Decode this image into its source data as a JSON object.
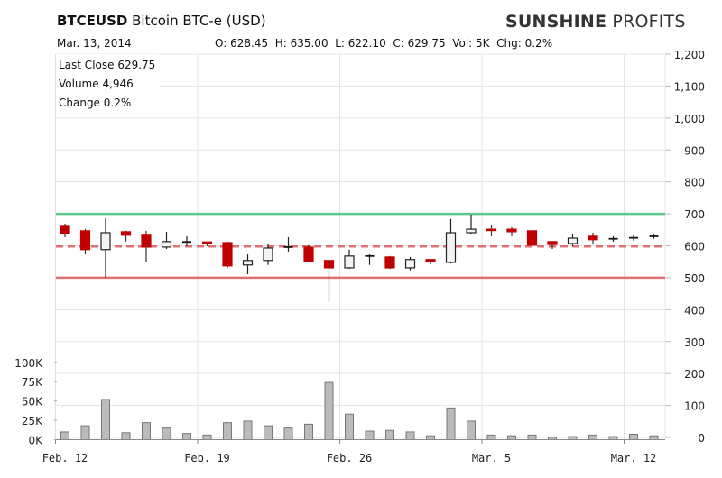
{
  "header": {
    "symbol": "BTCEUSD",
    "name": "Bitcoin BTC-e (USD)",
    "logo_bold": "SUNSHINE",
    "logo_light": "PROFITS",
    "date": "Mar. 13, 2014",
    "ohlc_text": "O: 628.45  H: 635.00  L: 622.10  C: 629.75  Vol: 5K  Chg: 0.2%"
  },
  "info": {
    "last_close": "Last Close 629.75",
    "volume": "Volume 4,946",
    "change": "Change 0.2%"
  },
  "colors": {
    "up": "#f4f4f4",
    "down": "#c00000",
    "resistance": "#5cc98a",
    "support": "#e07070",
    "volume": "#bbbbbb"
  },
  "chart_data": {
    "type": "candlestick",
    "title": "BTCEUSD Bitcoin BTC-e (USD)",
    "x_tick_labels": [
      "Feb. 12",
      "Feb. 19",
      "Feb. 26",
      "Mar. 5",
      "Mar. 12"
    ],
    "x_tick_day_index": [
      0,
      7,
      14,
      21,
      28
    ],
    "price_axis": {
      "ylim": [
        0,
        1200
      ],
      "ticks": [
        0,
        100,
        200,
        300,
        400,
        500,
        600,
        700,
        800,
        900,
        1000,
        1100,
        1200
      ],
      "tick_labels": [
        "0",
        "100",
        "200",
        "300",
        "400",
        "500",
        "600",
        "700",
        "800",
        "900",
        "1,000",
        "1,100",
        "1,200"
      ]
    },
    "volume_axis": {
      "ylim": [
        0,
        100
      ],
      "unit": "K",
      "ticks": [
        0,
        25,
        50,
        75,
        100
      ],
      "tick_labels": [
        "0K",
        "25K",
        "50K",
        "75K",
        "100K"
      ]
    },
    "horizontal_lines": [
      {
        "name": "resistance",
        "value": 700,
        "style": "solid",
        "color": "#5cc98a"
      },
      {
        "name": "mid",
        "value": 598,
        "style": "dashed",
        "color": "#e07070"
      },
      {
        "name": "support",
        "value": 500,
        "style": "solid",
        "color": "#e07070"
      }
    ],
    "candles": [
      {
        "o": 661,
        "h": 669,
        "l": 627,
        "c": 638,
        "v": 10
      },
      {
        "o": 647,
        "h": 653,
        "l": 573,
        "c": 588,
        "v": 18
      },
      {
        "o": 588,
        "h": 686,
        "l": 500,
        "c": 641,
        "v": 52
      },
      {
        "o": 644,
        "h": 647,
        "l": 613,
        "c": 633,
        "v": 9
      },
      {
        "o": 633,
        "h": 647,
        "l": 548,
        "c": 596,
        "v": 22
      },
      {
        "o": 596,
        "h": 644,
        "l": 590,
        "c": 613,
        "v": 15
      },
      {
        "o": 610,
        "h": 630,
        "l": 599,
        "c": 612,
        "v": 8
      },
      {
        "o": 612,
        "h": 613,
        "l": 599,
        "c": 609,
        "v": 6
      },
      {
        "o": 610,
        "h": 613,
        "l": 531,
        "c": 537,
        "v": 22
      },
      {
        "o": 540,
        "h": 573,
        "l": 511,
        "c": 554,
        "v": 24
      },
      {
        "o": 554,
        "h": 607,
        "l": 540,
        "c": 593,
        "v": 18
      },
      {
        "o": 595,
        "h": 627,
        "l": 582,
        "c": 596,
        "v": 15
      },
      {
        "o": 596,
        "h": 602,
        "l": 548,
        "c": 551,
        "v": 20
      },
      {
        "o": 554,
        "h": 554,
        "l": 424,
        "c": 531,
        "v": 74
      },
      {
        "o": 531,
        "h": 588,
        "l": 528,
        "c": 568,
        "v": 33
      },
      {
        "o": 565,
        "h": 573,
        "l": 540,
        "c": 568,
        "v": 11
      },
      {
        "o": 565,
        "h": 568,
        "l": 528,
        "c": 531,
        "v": 12
      },
      {
        "o": 531,
        "h": 565,
        "l": 523,
        "c": 557,
        "v": 10
      },
      {
        "o": 557,
        "h": 559,
        "l": 542,
        "c": 551,
        "v": 5
      },
      {
        "o": 548,
        "h": 684,
        "l": 545,
        "c": 641,
        "v": 41
      },
      {
        "o": 641,
        "h": 698,
        "l": 636,
        "c": 652,
        "v": 24
      },
      {
        "o": 652,
        "h": 664,
        "l": 630,
        "c": 650,
        "v": 6
      },
      {
        "o": 652,
        "h": 658,
        "l": 630,
        "c": 644,
        "v": 5
      },
      {
        "o": 647,
        "h": 647,
        "l": 599,
        "c": 602,
        "v": 6
      },
      {
        "o": 613,
        "h": 613,
        "l": 590,
        "c": 604,
        "v": 3
      },
      {
        "o": 607,
        "h": 636,
        "l": 599,
        "c": 624,
        "v": 4
      },
      {
        "o": 630,
        "h": 641,
        "l": 604,
        "c": 619,
        "v": 6
      },
      {
        "o": 621,
        "h": 630,
        "l": 613,
        "c": 622,
        "v": 4
      },
      {
        "o": 624,
        "h": 633,
        "l": 616,
        "c": 625,
        "v": 7
      },
      {
        "o": 628.45,
        "h": 635,
        "l": 622.1,
        "c": 629.75,
        "v": 5
      }
    ]
  }
}
